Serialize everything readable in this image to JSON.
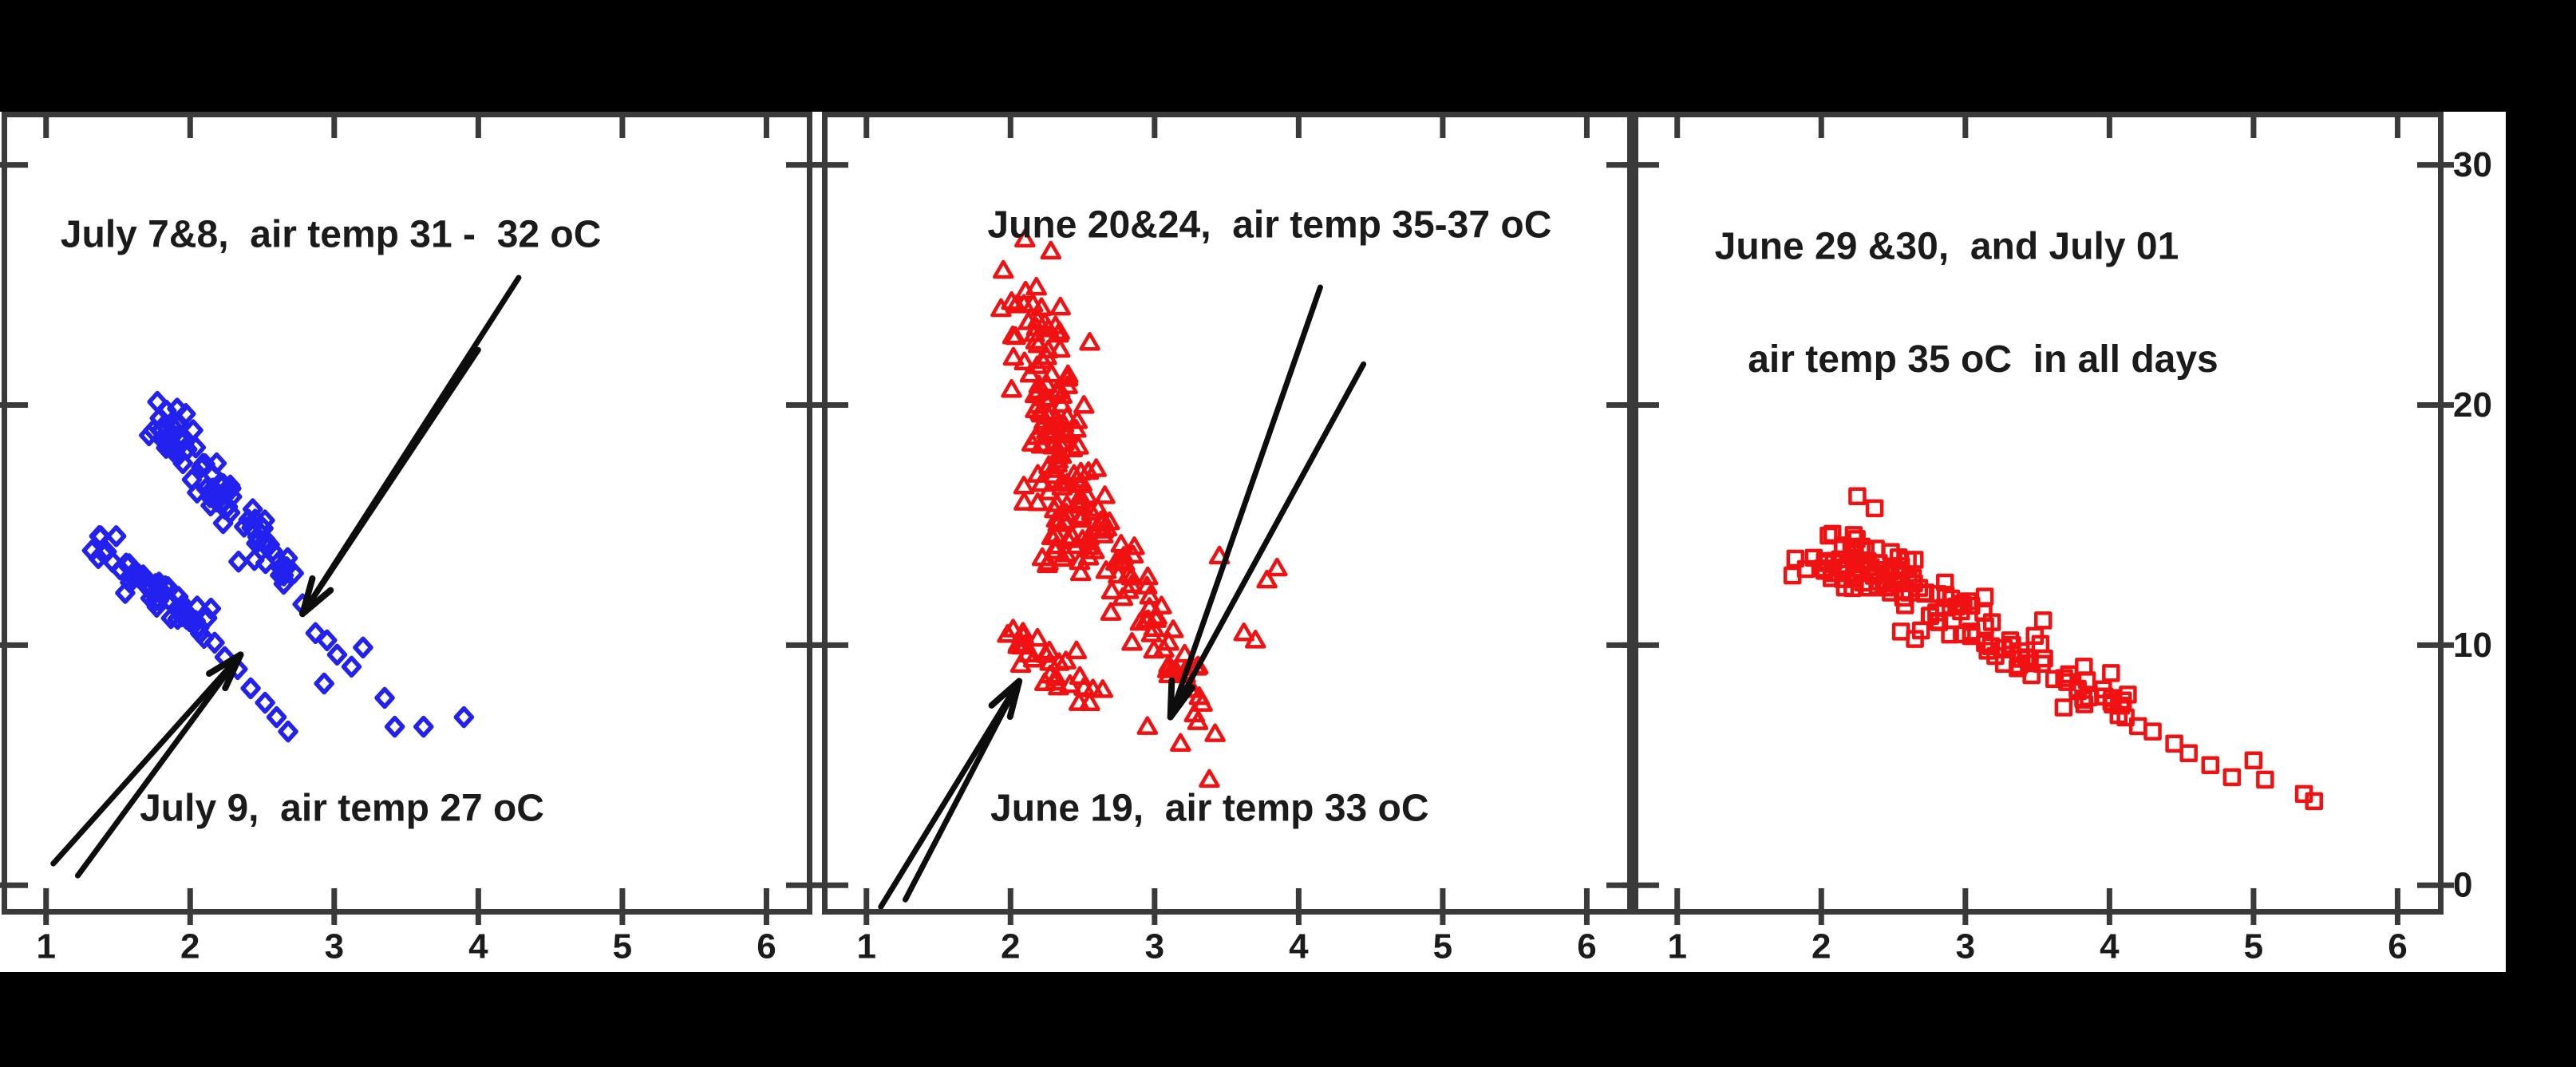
{
  "figure": {
    "background_color": "#000000",
    "panel_color": "#ffffff",
    "frame_color": "#3a3a3a",
    "text_color": "#1b1b1b",
    "blue": "#2321ee",
    "red": "#f01212"
  },
  "chart_data": [
    {
      "type": "scatter",
      "title": "",
      "xlabel": "",
      "ylabel": "",
      "xlim": [
        0.73,
        6.28
      ],
      "ylim": [
        -0.99,
        31.98
      ],
      "xticks": [
        "1",
        "2",
        "3",
        "4",
        "5",
        "6"
      ],
      "yticks": [
        "0",
        "10",
        "20",
        "30"
      ],
      "ytick_values": [
        0,
        10,
        20,
        30
      ],
      "ytick_labels_shown": false,
      "grid": false,
      "series": [
        {
          "name": "July 7&8",
          "marker": "diamond",
          "color": "#2321ee",
          "clusters": [
            {
              "n": 82,
              "x1": 1.78,
              "y1": 19.6,
              "x2": 2.72,
              "y2": 12.6,
              "jx": 0.18,
              "jy": 1.15,
              "seed": 11
            }
          ],
          "points": [
            [
              2.78,
              11.7
            ],
            [
              2.87,
              10.5
            ],
            [
              2.95,
              10.2
            ],
            [
              3.02,
              9.6
            ],
            [
              3.12,
              9.1
            ],
            [
              2.93,
              8.4
            ],
            [
              3.2,
              9.9
            ],
            [
              3.35,
              7.8
            ],
            [
              3.42,
              6.6
            ],
            [
              3.62,
              6.6
            ],
            [
              3.9,
              7.0
            ]
          ]
        },
        {
          "name": "July 9",
          "marker": "diamond",
          "color": "#2321ee",
          "clusters": [
            {
              "n": 50,
              "x1": 1.33,
              "y1": 14.3,
              "x2": 2.1,
              "y2": 10.8,
              "jx": 0.13,
              "jy": 0.95,
              "seed": 23
            }
          ],
          "points": [
            [
              2.17,
              10.1
            ],
            [
              2.24,
              9.5
            ],
            [
              2.33,
              9.0
            ],
            [
              2.42,
              8.2
            ],
            [
              2.52,
              7.6
            ],
            [
              2.6,
              7.0
            ],
            [
              2.68,
              6.4
            ]
          ]
        }
      ],
      "annotations": [
        {
          "text": "July 7&8,  air temp 31 -  32 oC",
          "x": 1.1,
          "y": 27.1,
          "anchor": "start"
        },
        {
          "text": "July 9,  air temp 27 oC",
          "x": 1.65,
          "y": 3.2,
          "anchor": "start"
        }
      ],
      "arrows": [
        {
          "tip": [
            2.78,
            11.3
          ],
          "tails": [
            [
              4.28,
              25.3
            ],
            [
              4.0,
              22.3
            ]
          ]
        },
        {
          "tip": [
            2.35,
            9.6
          ],
          "tails": [
            [
              1.05,
              0.9
            ],
            [
              1.22,
              0.4
            ]
          ]
        }
      ]
    },
    {
      "type": "scatter",
      "title": "",
      "xlabel": "",
      "ylabel": "",
      "xlim": [
        0.73,
        6.28
      ],
      "ylim": [
        -0.99,
        31.98
      ],
      "xticks": [
        "1",
        "2",
        "3",
        "4",
        "5",
        "6"
      ],
      "yticks": [
        "0",
        "10",
        "20",
        "30"
      ],
      "ytick_values": [
        0,
        10,
        20,
        30
      ],
      "ytick_labels_shown": false,
      "grid": false,
      "series": [
        {
          "name": "June 20&24",
          "marker": "triangle",
          "color": "#f01212",
          "clusters": [
            {
              "n": 130,
              "x1": 2.1,
              "y1": 24.0,
              "x2": 2.45,
              "y2": 14.0,
              "jx": 0.28,
              "jy": 2.0,
              "seed": 37
            },
            {
              "n": 45,
              "x1": 2.45,
              "y1": 16.5,
              "x2": 3.0,
              "y2": 11.0,
              "jx": 0.2,
              "jy": 1.6,
              "seed": 41
            },
            {
              "n": 25,
              "x1": 2.9,
              "y1": 11.5,
              "x2": 3.3,
              "y2": 8.0,
              "jx": 0.12,
              "jy": 1.0,
              "seed": 43
            }
          ],
          "points": [
            [
              2.1,
              26.9
            ],
            [
              2.28,
              26.4
            ],
            [
              1.95,
              25.6
            ],
            [
              2.55,
              22.6
            ],
            [
              3.45,
              13.7
            ],
            [
              3.62,
              10.5
            ],
            [
              3.7,
              10.2
            ],
            [
              3.85,
              13.2
            ],
            [
              3.78,
              12.7
            ],
            [
              3.3,
              6.8
            ],
            [
              3.42,
              6.3
            ],
            [
              3.38,
              4.4
            ],
            [
              3.18,
              5.9
            ],
            [
              2.95,
              6.6
            ]
          ]
        },
        {
          "name": "June 19",
          "marker": "triangle",
          "color": "#f01212",
          "clusters": [
            {
              "n": 30,
              "x1": 2.0,
              "y1": 10.8,
              "x2": 2.55,
              "y2": 7.8,
              "jx": 0.15,
              "jy": 1.1,
              "seed": 53
            }
          ],
          "points": []
        }
      ],
      "annotations": [
        {
          "text": "June 20&24,  air temp 35-37 oC",
          "x": 1.84,
          "y": 27.5,
          "anchor": "start"
        },
        {
          "text": "June 19,  air temp 33 oC",
          "x": 1.86,
          "y": 3.2,
          "anchor": "start"
        }
      ],
      "arrows": [
        {
          "tip": [
            3.11,
            7.0
          ],
          "tails": [
            [
              4.15,
              24.9
            ],
            [
              4.45,
              21.7
            ]
          ]
        },
        {
          "tip": [
            2.06,
            8.5
          ],
          "tails": [
            [
              1.1,
              -0.9
            ],
            [
              1.27,
              -0.6
            ]
          ]
        }
      ]
    },
    {
      "type": "scatter",
      "title": "",
      "xlabel": "",
      "ylabel": "",
      "xlim": [
        0.73,
        6.28
      ],
      "ylim": [
        -0.99,
        31.98
      ],
      "xticks": [
        "1",
        "2",
        "3",
        "4",
        "5",
        "6"
      ],
      "yticks": [
        "0",
        "10",
        "20",
        "30"
      ],
      "ytick_values": [
        0,
        10,
        20,
        30
      ],
      "ytick_labels_shown": true,
      "grid": false,
      "series": [
        {
          "name": "June 29 &30, and July 01",
          "marker": "square",
          "color": "#f01212",
          "clusters": [
            {
              "n": 118,
              "x1": 2.05,
              "y1": 14.0,
              "x2": 4.15,
              "y2": 7.2,
              "jx": 0.3,
              "jy": 1.5,
              "seed": 67
            },
            {
              "n": 30,
              "x1": 1.95,
              "y1": 13.6,
              "x2": 2.55,
              "y2": 12.4,
              "jx": 0.18,
              "jy": 1.2,
              "seed": 71
            }
          ],
          "points": [
            [
              2.25,
              16.2
            ],
            [
              2.37,
              15.7
            ],
            [
              1.82,
              13.6
            ],
            [
              1.8,
              12.9
            ],
            [
              4.3,
              6.4
            ],
            [
              4.45,
              5.9
            ],
            [
              4.55,
              5.5
            ],
            [
              4.7,
              5.0
            ],
            [
              4.85,
              4.5
            ],
            [
              5.0,
              5.2
            ],
            [
              5.08,
              4.4
            ],
            [
              5.35,
              3.8
            ],
            [
              5.42,
              3.5
            ]
          ]
        }
      ],
      "annotations": [
        {
          "text": "June 29 &30,  and July 01",
          "x": 1.26,
          "y": 26.6,
          "anchor": "start"
        },
        {
          "text": "air temp 35 oC  in all days",
          "x": 1.49,
          "y": 21.9,
          "anchor": "start"
        }
      ],
      "arrows": []
    }
  ]
}
